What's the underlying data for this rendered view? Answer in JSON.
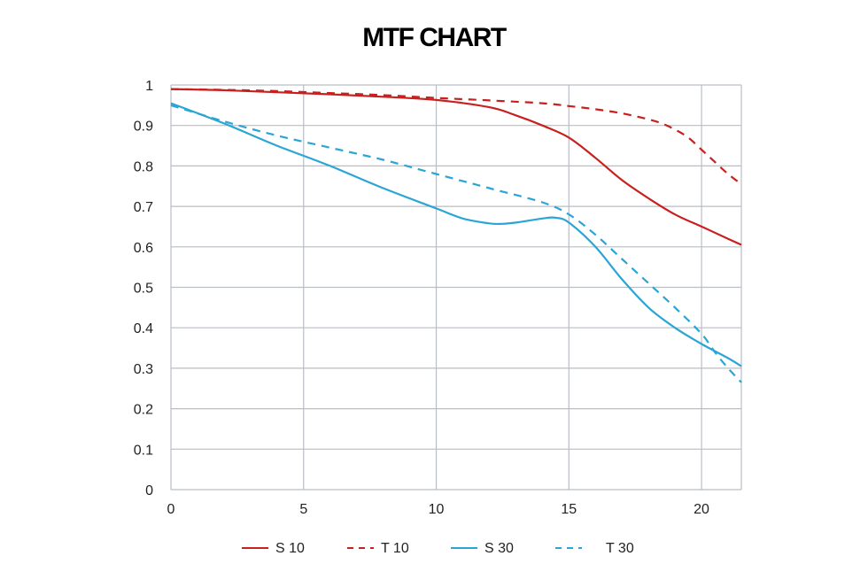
{
  "chart_data": {
    "type": "line",
    "title": "MTF CHART",
    "xlabel": "",
    "ylabel": "",
    "xlim": [
      0,
      21.5
    ],
    "ylim": [
      0,
      1
    ],
    "x_ticks": [
      0,
      5,
      10,
      15,
      20
    ],
    "x_tick_labels": [
      "0",
      "5",
      "10",
      "15",
      "20"
    ],
    "y_ticks": [
      0,
      0.1,
      0.2,
      0.3,
      0.4,
      0.5,
      0.6,
      0.7,
      0.8,
      0.9,
      1
    ],
    "y_tick_labels": [
      "0",
      "0.1",
      "0.2",
      "0.3",
      "0.4",
      "0.5",
      "0.6",
      "0.7",
      "0.8",
      "0.9",
      "1"
    ],
    "grid": true,
    "legend_position": "bottom",
    "series": [
      {
        "name": "S 10",
        "color": "#c8201e",
        "dash": "solid",
        "x": [
          0,
          2,
          4,
          6,
          8,
          10,
          12,
          13,
          14,
          15,
          16,
          17,
          18,
          19,
          20,
          21,
          21.5
        ],
        "y": [
          0.99,
          0.987,
          0.982,
          0.977,
          0.971,
          0.963,
          0.945,
          0.925,
          0.9,
          0.87,
          0.82,
          0.765,
          0.72,
          0.68,
          0.65,
          0.62,
          0.605
        ]
      },
      {
        "name": "T 10",
        "color": "#c8201e",
        "dash": "dashed",
        "x": [
          0,
          2,
          4,
          6,
          8,
          10,
          12,
          14,
          15,
          16,
          17,
          18,
          18.5,
          19,
          19.5,
          20,
          20.5,
          21,
          21.5
        ],
        "y": [
          0.99,
          0.988,
          0.985,
          0.98,
          0.975,
          0.968,
          0.962,
          0.955,
          0.948,
          0.94,
          0.93,
          0.915,
          0.905,
          0.89,
          0.87,
          0.84,
          0.81,
          0.78,
          0.755
        ]
      },
      {
        "name": "S 30",
        "color": "#2aa5d5",
        "dash": "solid",
        "x": [
          0,
          2,
          4,
          6,
          8,
          10,
          11,
          12,
          12.5,
          13,
          14,
          14.5,
          15,
          16,
          17,
          18,
          19,
          20,
          21,
          21.5
        ],
        "y": [
          0.955,
          0.905,
          0.85,
          0.8,
          0.745,
          0.695,
          0.67,
          0.658,
          0.657,
          0.66,
          0.67,
          0.672,
          0.66,
          0.6,
          0.52,
          0.45,
          0.4,
          0.36,
          0.325,
          0.305
        ]
      },
      {
        "name": "T 30",
        "color": "#2aa5d5",
        "dash": "dashed",
        "x": [
          0,
          2,
          4,
          6,
          8,
          10,
          12,
          14,
          15,
          16,
          17,
          18,
          19,
          20,
          20.5,
          21,
          21.5
        ],
        "y": [
          0.95,
          0.91,
          0.875,
          0.845,
          0.815,
          0.78,
          0.745,
          0.71,
          0.68,
          0.63,
          0.57,
          0.51,
          0.45,
          0.385,
          0.34,
          0.3,
          0.265
        ]
      }
    ]
  }
}
